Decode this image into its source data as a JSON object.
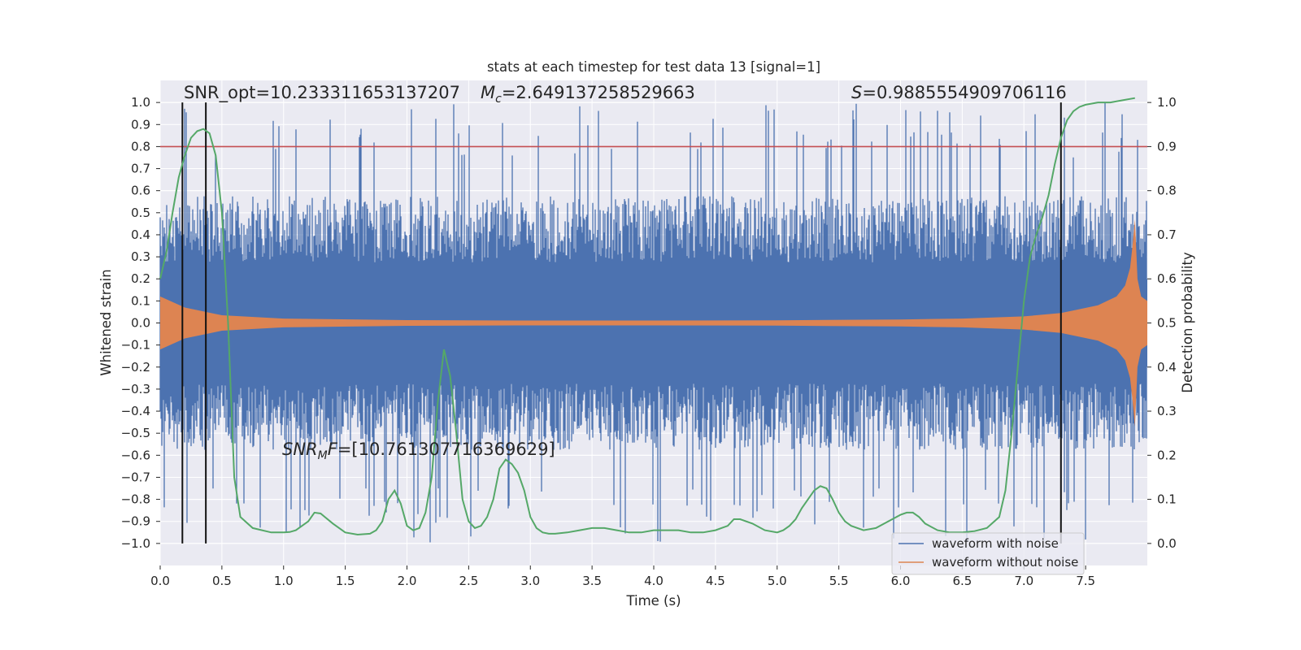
{
  "chart_data": {
    "type": "line",
    "title": "stats at each timestep for test data 13 [signal=1]",
    "xlabel": "Time (s)",
    "ylabel": "Whitened strain",
    "y2label": "Detection probability",
    "xlim": [
      0.0,
      8.0
    ],
    "ylim": [
      -1.1,
      1.1
    ],
    "y2lim": [
      -0.05,
      1.05
    ],
    "x_ticks": [
      "0.0",
      "0.5",
      "1.0",
      "1.5",
      "2.0",
      "2.5",
      "3.0",
      "3.5",
      "4.0",
      "4.5",
      "5.0",
      "5.5",
      "6.0",
      "6.5",
      "7.0",
      "7.5"
    ],
    "y_ticks": [
      "1.0",
      "0.9",
      "0.8",
      "0.7",
      "0.6",
      "0.5",
      "0.4",
      "0.3",
      "0.2",
      "0.1",
      "0.0",
      "−0.1",
      "−0.2",
      "−0.3",
      "−0.4",
      "−0.5",
      "−0.6",
      "−0.7",
      "−0.8",
      "−0.9",
      "−1.0"
    ],
    "y2_ticks": [
      "1.0",
      "0.9",
      "0.8",
      "0.7",
      "0.6",
      "0.5",
      "0.4",
      "0.3",
      "0.2",
      "0.1",
      "0.0"
    ],
    "grid": true,
    "legend_position": "bottom-right",
    "annotations": {
      "snr_opt": "SNR_opt=10.233311653137207",
      "mc_symbol": "M",
      "mc_sub": "c",
      "mc_value": "=2.649137258529663",
      "s_symbol": "S",
      "s_value": "=0.9885554909706116",
      "snrmf_symbol": "SNR",
      "snrmf_sub": "M",
      "snrmf_tail": "F",
      "snrmf_value": "=[10.761307716369629]"
    },
    "threshold_line": {
      "y2": 0.9,
      "color": "#c44e52"
    },
    "vertical_lines_x": [
      0.18,
      0.37,
      7.3
    ],
    "series": [
      {
        "name": "waveform with noise",
        "color": "#4c72b0",
        "envelope_approx": {
          "upper_typical": 0.5,
          "lower_typical": -0.5,
          "peak_upper": 1.0,
          "peak_lower": -1.0
        }
      },
      {
        "name": "waveform without noise",
        "color": "#dd8452",
        "envelope": {
          "x": [
            0.0,
            0.2,
            0.5,
            1.0,
            2.0,
            3.0,
            4.0,
            5.0,
            6.0,
            6.5,
            7.0,
            7.3,
            7.6,
            7.75,
            7.82,
            7.86,
            7.88,
            7.9,
            7.92,
            7.95,
            8.0
          ],
          "amplitude": [
            0.12,
            0.07,
            0.035,
            0.02,
            0.013,
            0.011,
            0.011,
            0.012,
            0.016,
            0.02,
            0.03,
            0.045,
            0.08,
            0.12,
            0.17,
            0.25,
            0.35,
            0.47,
            0.2,
            0.12,
            0.1
          ]
        }
      },
      {
        "name": "detection probability",
        "color": "#55a868",
        "axis": "y2",
        "x": [
          0.0,
          0.05,
          0.1,
          0.15,
          0.2,
          0.25,
          0.3,
          0.35,
          0.4,
          0.45,
          0.5,
          0.55,
          0.6,
          0.65,
          0.75,
          0.9,
          1.0,
          1.05,
          1.1,
          1.2,
          1.25,
          1.3,
          1.4,
          1.5,
          1.6,
          1.7,
          1.75,
          1.8,
          1.85,
          1.9,
          1.95,
          2.0,
          2.05,
          2.1,
          2.15,
          2.2,
          2.25,
          2.3,
          2.35,
          2.4,
          2.45,
          2.5,
          2.55,
          2.6,
          2.65,
          2.7,
          2.75,
          2.8,
          2.85,
          2.9,
          2.95,
          3.0,
          3.05,
          3.1,
          3.15,
          3.2,
          3.3,
          3.4,
          3.5,
          3.6,
          3.7,
          3.8,
          3.9,
          4.0,
          4.1,
          4.2,
          4.3,
          4.4,
          4.5,
          4.6,
          4.65,
          4.7,
          4.8,
          4.9,
          5.0,
          5.05,
          5.1,
          5.15,
          5.2,
          5.3,
          5.35,
          5.4,
          5.45,
          5.5,
          5.55,
          5.6,
          5.7,
          5.8,
          5.9,
          6.0,
          6.05,
          6.1,
          6.15,
          6.2,
          6.3,
          6.4,
          6.5,
          6.6,
          6.7,
          6.8,
          6.85,
          6.9,
          6.95,
          7.0,
          7.05,
          7.1,
          7.15,
          7.2,
          7.25,
          7.3,
          7.35,
          7.4,
          7.45,
          7.5,
          7.6,
          7.7,
          7.8,
          7.9
        ],
        "y": [
          0.6,
          0.66,
          0.75,
          0.83,
          0.88,
          0.92,
          0.935,
          0.94,
          0.93,
          0.88,
          0.75,
          0.5,
          0.15,
          0.06,
          0.035,
          0.025,
          0.025,
          0.026,
          0.03,
          0.05,
          0.07,
          0.068,
          0.045,
          0.025,
          0.02,
          0.022,
          0.03,
          0.05,
          0.1,
          0.12,
          0.09,
          0.04,
          0.03,
          0.035,
          0.07,
          0.15,
          0.32,
          0.44,
          0.38,
          0.25,
          0.1,
          0.05,
          0.035,
          0.04,
          0.06,
          0.1,
          0.17,
          0.19,
          0.18,
          0.16,
          0.12,
          0.06,
          0.035,
          0.025,
          0.022,
          0.022,
          0.025,
          0.03,
          0.035,
          0.035,
          0.03,
          0.025,
          0.025,
          0.03,
          0.03,
          0.03,
          0.025,
          0.025,
          0.03,
          0.04,
          0.055,
          0.055,
          0.045,
          0.03,
          0.025,
          0.03,
          0.04,
          0.055,
          0.08,
          0.12,
          0.13,
          0.125,
          0.1,
          0.07,
          0.05,
          0.04,
          0.03,
          0.035,
          0.05,
          0.065,
          0.07,
          0.07,
          0.06,
          0.045,
          0.03,
          0.025,
          0.025,
          0.028,
          0.035,
          0.06,
          0.12,
          0.25,
          0.4,
          0.55,
          0.65,
          0.7,
          0.74,
          0.79,
          0.86,
          0.92,
          0.96,
          0.98,
          0.99,
          0.995,
          1.0,
          1.0,
          1.005,
          1.01
        ]
      }
    ]
  }
}
